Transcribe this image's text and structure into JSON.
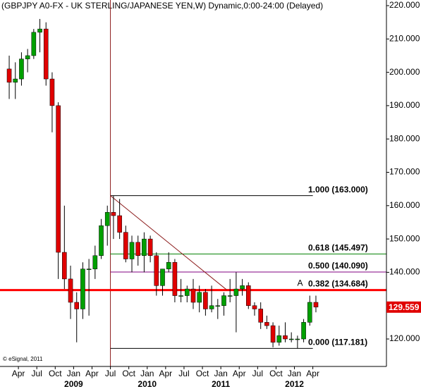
{
  "chart_data": {
    "type": "candlestick",
    "title": "(GBPJPY A0-FX - UK STERLING/JAPANESE YEN,W) Dynamic,0:00-24:00 (Delayed)",
    "credit": "© eSignal, 2011",
    "x": [
      "2008-02",
      "2008-03",
      "2008-04",
      "2008-05",
      "2008-06",
      "2008-07",
      "2008-08",
      "2008-09",
      "2008-10",
      "2008-11",
      "2008-12",
      "2009-01",
      "2009-02",
      "2009-03",
      "2009-04",
      "2009-05",
      "2009-06",
      "2009-07",
      "2009-08",
      "2009-09",
      "2009-10",
      "2009-11",
      "2009-12",
      "2010-01",
      "2010-02",
      "2010-03",
      "2010-04",
      "2010-05",
      "2010-06",
      "2010-07",
      "2010-08",
      "2010-09",
      "2010-10",
      "2010-11",
      "2010-12",
      "2011-01",
      "2011-02",
      "2011-03",
      "2011-04",
      "2011-05",
      "2011-06",
      "2011-07",
      "2011-08",
      "2011-09",
      "2011-10",
      "2011-11",
      "2011-12",
      "2012-01",
      "2012-02",
      "2012-03",
      "2012-04"
    ],
    "ohlc": [
      [
        201,
        205,
        192,
        197
      ],
      [
        197,
        203,
        192,
        198
      ],
      [
        198,
        206,
        196,
        204
      ],
      [
        204,
        207,
        200,
        205
      ],
      [
        205,
        213,
        204,
        212
      ],
      [
        212,
        216,
        206,
        213
      ],
      [
        213,
        215,
        196,
        198
      ],
      [
        198,
        200,
        182,
        190
      ],
      [
        190,
        191,
        138,
        146
      ],
      [
        146,
        160,
        135,
        138
      ],
      [
        138,
        142,
        126,
        131
      ],
      [
        131,
        134,
        119,
        129
      ],
      [
        129,
        143,
        126,
        141
      ],
      [
        141,
        144,
        127,
        141
      ],
      [
        141,
        148,
        138,
        145
      ],
      [
        145,
        156,
        144,
        154
      ],
      [
        154,
        160,
        148,
        158
      ],
      [
        158,
        163,
        150,
        157
      ],
      [
        157,
        162,
        150,
        152
      ],
      [
        152,
        154,
        143,
        144
      ],
      [
        144,
        151,
        140,
        149
      ],
      [
        149,
        151,
        142,
        145
      ],
      [
        145,
        152,
        140,
        150
      ],
      [
        150,
        151,
        143,
        145
      ],
      [
        145,
        146,
        133,
        136
      ],
      [
        136,
        141,
        133,
        141
      ],
      [
        141,
        146,
        140,
        143
      ],
      [
        143,
        144,
        131,
        133
      ],
      [
        133,
        138,
        131,
        133
      ],
      [
        133,
        136,
        131,
        135
      ],
      [
        135,
        138,
        129,
        131
      ],
      [
        131,
        136,
        128,
        134
      ],
      [
        134,
        135,
        127,
        129
      ],
      [
        129,
        136,
        128,
        130
      ],
      [
        130,
        132,
        126,
        130
      ],
      [
        130,
        134,
        127,
        133
      ],
      [
        133,
        138,
        131,
        133
      ],
      [
        133,
        140,
        122,
        135
      ],
      [
        135,
        138,
        133,
        136
      ],
      [
        136,
        137,
        129,
        130
      ],
      [
        130,
        131,
        127,
        129
      ],
      [
        129,
        131,
        123,
        125
      ],
      [
        125,
        127,
        123,
        124
      ],
      [
        124,
        125,
        117.5,
        119
      ],
      [
        119,
        124,
        118,
        121
      ],
      [
        121,
        125,
        119,
        120
      ],
      [
        120,
        122,
        119,
        120
      ],
      [
        120,
        121,
        117.2,
        120
      ],
      [
        120,
        126,
        119,
        125
      ],
      [
        125,
        133,
        124,
        131
      ],
      [
        131,
        133,
        128,
        129.559
      ]
    ],
    "up_color": "#00a000",
    "down_color": "#e00000",
    "xlim": [
      "2008-01",
      "2013-04"
    ],
    "ylim": [
      111.76,
      221.69
    ],
    "yticks": [
      {
        "value": 120,
        "label": "120.000"
      },
      {
        "value": 130,
        "label": "130.000"
      },
      {
        "value": 140,
        "label": "140.000"
      },
      {
        "value": 150,
        "label": "150.000"
      },
      {
        "value": 160,
        "label": "160.000"
      },
      {
        "value": 170,
        "label": "170.000"
      },
      {
        "value": 180,
        "label": "180.000"
      },
      {
        "value": 190,
        "label": "190.000"
      },
      {
        "value": 200,
        "label": "200.000"
      },
      {
        "value": 210,
        "label": "210.000"
      },
      {
        "value": 220,
        "label": "220.000"
      }
    ],
    "xticks": [
      {
        "value": "2008-04",
        "label": "Apr"
      },
      {
        "value": "2008-07",
        "label": "Jul"
      },
      {
        "value": "2008-10",
        "label": "Oct"
      },
      {
        "value": "2009-01",
        "label": "Jan"
      },
      {
        "value": "2009-04",
        "label": "Apr"
      },
      {
        "value": "2009-07",
        "label": "Jul"
      },
      {
        "value": "2009-10",
        "label": "Oct"
      },
      {
        "value": "2010-01",
        "label": "Jan"
      },
      {
        "value": "2010-04",
        "label": "Apr"
      },
      {
        "value": "2010-07",
        "label": "Jul"
      },
      {
        "value": "2010-10",
        "label": "Oct"
      },
      {
        "value": "2011-01",
        "label": "Jan"
      },
      {
        "value": "2011-04",
        "label": "Apr"
      },
      {
        "value": "2011-07",
        "label": "Jul"
      },
      {
        "value": "2011-10",
        "label": "Oct"
      },
      {
        "value": "2012-01",
        "label": "Jan"
      },
      {
        "value": "2012-04",
        "label": "Apr"
      }
    ],
    "year_ticks": [
      {
        "value": "2009-01",
        "label": "2009"
      },
      {
        "value": "2010-01",
        "label": "2010"
      },
      {
        "value": "2011-01",
        "label": "2011"
      },
      {
        "value": "2012-01",
        "label": "2012"
      }
    ],
    "last_price": 129.559,
    "last_price_color": "#e00000",
    "levels": [
      {
        "value": 163.0,
        "label": "1.000 (163.000)",
        "color": "#000000",
        "x_range": [
          "2009-07",
          "2012-04"
        ]
      },
      {
        "value": 145.497,
        "label": "0.618 (145.497)",
        "color": "#008000",
        "x_range": [
          "2009-07",
          "2013-04"
        ]
      },
      {
        "value": 140.09,
        "label": "0.500 (140.090)",
        "color": "#800080",
        "x_range": [
          "2009-07",
          "2013-04"
        ]
      },
      {
        "value": 134.684,
        "label": "0.382 (134.684)",
        "color": "#8b0000",
        "x_range": [
          "2008-01",
          "2013-04"
        ]
      },
      {
        "value": 117.181,
        "label": "0.000 (117.181)",
        "color": "#000000",
        "x_range": [
          "2009-07",
          "2012-04"
        ]
      }
    ],
    "accent_line_color": "#ff0000",
    "trend_line": {
      "from": [
        "2009-07",
        163.0
      ],
      "to": [
        "2011-02",
        134.684
      ],
      "color": "#8b1a1a"
    },
    "vertical_line": {
      "x": "2009-07",
      "color": "#8b1a1a"
    },
    "marker": {
      "label": "A",
      "x": "2012-01",
      "y": 134.684
    }
  }
}
